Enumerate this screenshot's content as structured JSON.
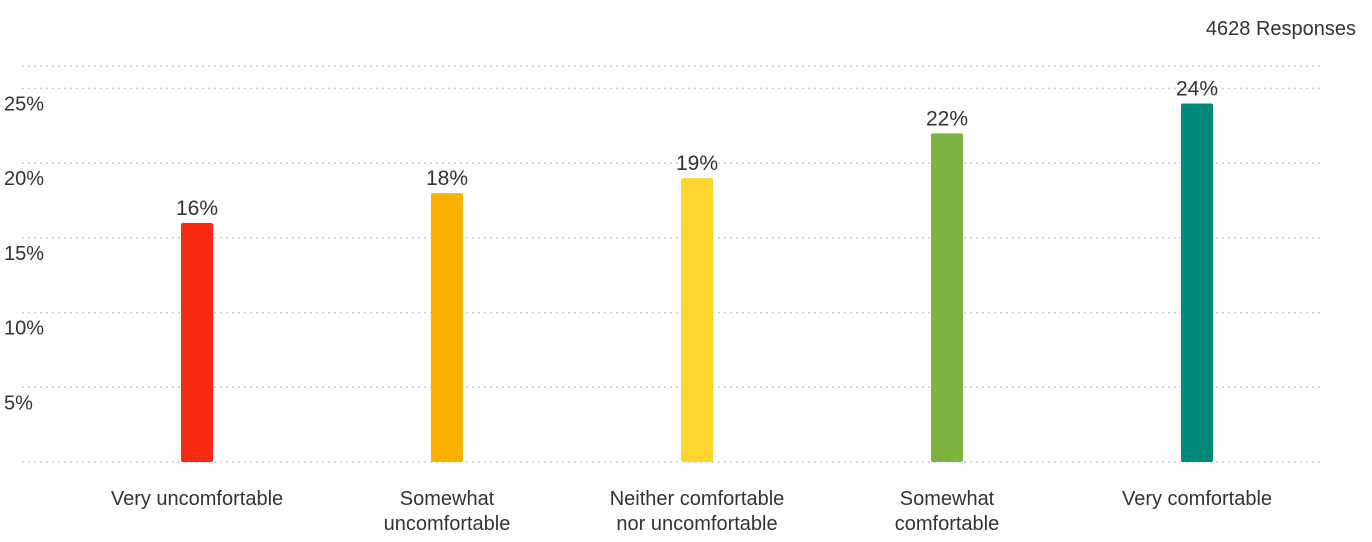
{
  "header": {
    "responses_label": "4628 Responses"
  },
  "chart_data": {
    "type": "bar",
    "title": "",
    "xlabel": "",
    "ylabel": "",
    "ylim": [
      0,
      26.5
    ],
    "yticks": [
      5,
      10,
      15,
      20,
      25
    ],
    "ytick_labels": [
      "5%",
      "10%",
      "15%",
      "20%",
      "25%"
    ],
    "grid": "horizontal-dotted",
    "categories": [
      [
        "Very uncomfortable"
      ],
      [
        "Somewhat",
        "uncomfortable"
      ],
      [
        "Neither comfortable",
        "nor uncomfortable"
      ],
      [
        "Somewhat",
        "comfortable"
      ],
      [
        "Very comfortable"
      ]
    ],
    "values": [
      16,
      18,
      19,
      22,
      24
    ],
    "value_labels": [
      "16%",
      "18%",
      "19%",
      "22%",
      "24%"
    ],
    "colors": [
      "#f92a12",
      "#fbb202",
      "#fcd52f",
      "#7db341",
      "#00897b"
    ],
    "gridline_color": "#cccccc"
  }
}
